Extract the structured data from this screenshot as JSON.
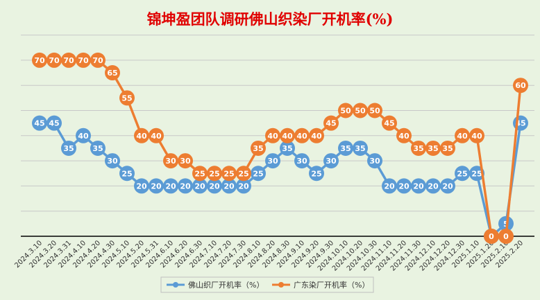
{
  "chart_data": {
    "type": "line",
    "title": "锦坤盈团队调研佛山织染厂开机率(%)",
    "xlabel": "",
    "ylabel": "",
    "ylim": [
      0,
      80
    ],
    "grid": true,
    "legend_position": "bottom",
    "categories": [
      "2024.3.10",
      "2024.3.20",
      "2024.3.31",
      "2024.4.10",
      "2024.4.20",
      "2024.4.30",
      "2024.5.10",
      "2024.5.20",
      "2024.5.31",
      "2024.6.10",
      "2024.6.20",
      "2024.6.30",
      "2024.7.10",
      "2024.7.20",
      "2024.7.30",
      "2024.8.10",
      "2024.8.20",
      "2024.8.30",
      "2024.9.10",
      "2024.9.20",
      "2024.9.30",
      "2024.10.10",
      "2024.10.20",
      "2024.10.30",
      "2024.11.10",
      "2024.11.20",
      "2024.11.30",
      "2024.12.10",
      "2024.12.20",
      "2024.12.30",
      "2025.1.10",
      "2025.1.20",
      "2025.2.10",
      "2025.2.20"
    ],
    "series": [
      {
        "name": "佛山织厂开机率（%）",
        "color": "#5b9bd5",
        "values": [
          45,
          45,
          35,
          40,
          35,
          30,
          25,
          20,
          20,
          20,
          20,
          20,
          20,
          20,
          20,
          25,
          30,
          35,
          30,
          25,
          30,
          35,
          35,
          30,
          20,
          20,
          20,
          20,
          20,
          25,
          25,
          0,
          5,
          45
        ]
      },
      {
        "name": "广东染厂开机率（%）",
        "color": "#ed7d31",
        "values": [
          70,
          70,
          70,
          70,
          70,
          65,
          55,
          40,
          40,
          30,
          30,
          25,
          25,
          25,
          25,
          35,
          40,
          40,
          40,
          40,
          45,
          50,
          50,
          50,
          45,
          40,
          35,
          35,
          35,
          40,
          40,
          0,
          0,
          60
        ]
      }
    ],
    "colors": {
      "title": "#e00000",
      "background": "#e9f3e1",
      "grid": "#c8c8c8",
      "axis": "#000000"
    }
  }
}
